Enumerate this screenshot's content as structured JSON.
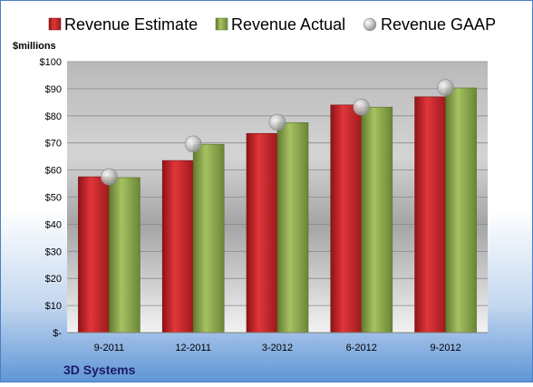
{
  "chart_data": {
    "type": "bar",
    "categories": [
      "9-2011",
      "12-2011",
      "3-2012",
      "6-2012",
      "9-2012"
    ],
    "series": [
      {
        "name": "Revenue Estimate",
        "values": [
          57.5,
          63.5,
          73.5,
          84,
          87
        ],
        "color": "#cc1f24"
      },
      {
        "name": "Revenue Actual",
        "values": [
          57.2,
          69.5,
          77.5,
          83.2,
          90.3
        ],
        "color": "#8daa4b"
      },
      {
        "name": "Revenue GAAP",
        "values": [
          57.5,
          69.6,
          77.6,
          83.2,
          90.4
        ],
        "color": "#b8b8b8"
      }
    ],
    "ylabel": "$millions",
    "ylim": [
      0,
      100
    ],
    "yticks": [
      0,
      10,
      20,
      30,
      40,
      50,
      60,
      70,
      80,
      90,
      100
    ],
    "ytick_labels": [
      "$-",
      "$10",
      "$20",
      "$30",
      "$40",
      "$50",
      "$60",
      "$70",
      "$80",
      "$90",
      "$100"
    ],
    "grid": true,
    "legend": "top"
  },
  "footer": {
    "company": "3D Systems"
  },
  "colors": {
    "background_top": "#ffffff",
    "background_bottom": "#5f95d6",
    "border": "#4b7fc4"
  }
}
